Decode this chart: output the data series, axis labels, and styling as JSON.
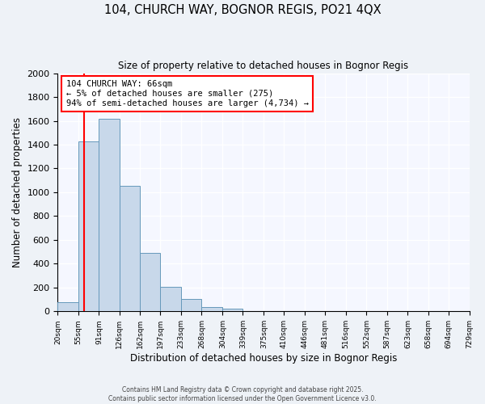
{
  "title": "104, CHURCH WAY, BOGNOR REGIS, PO21 4QX",
  "subtitle": "Size of property relative to detached houses in Bognor Regis",
  "xlabel": "Distribution of detached houses by size in Bognor Regis",
  "ylabel": "Number of detached properties",
  "bin_edges": [
    20,
    55,
    91,
    126,
    162,
    197,
    233,
    268,
    304,
    339,
    375,
    410,
    446,
    481,
    516,
    552,
    587,
    623,
    658,
    694,
    729
  ],
  "bin_counts": [
    80,
    1430,
    1620,
    1055,
    490,
    205,
    105,
    38,
    20,
    5,
    2,
    0,
    0,
    0,
    0,
    0,
    0,
    0,
    0,
    0
  ],
  "bar_color": "#c8d8ea",
  "bar_edge_color": "#6699bb",
  "vline_x": 66,
  "vline_color": "red",
  "annotation_title": "104 CHURCH WAY: 66sqm",
  "annotation_line1": "← 5% of detached houses are smaller (275)",
  "annotation_line2": "94% of semi-detached houses are larger (4,734) →",
  "annotation_box_color": "white",
  "annotation_box_edge": "red",
  "ylim": [
    0,
    2000
  ],
  "yticks": [
    0,
    200,
    400,
    600,
    800,
    1000,
    1200,
    1400,
    1600,
    1800,
    2000
  ],
  "footer1": "Contains HM Land Registry data © Crown copyright and database right 2025.",
  "footer2": "Contains public sector information licensed under the Open Government Licence v3.0.",
  "bg_color": "#eef2f7",
  "plot_bg_color": "#f5f7ff"
}
